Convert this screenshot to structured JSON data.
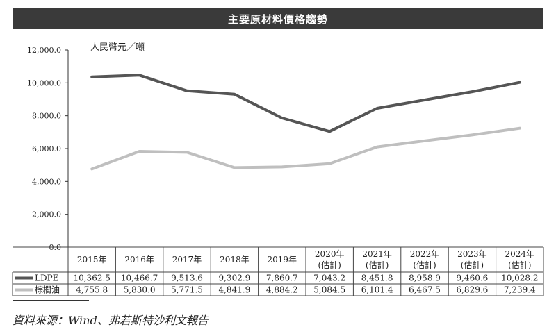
{
  "title": "主要原材料價格趨勢",
  "source": "資料來源：Wind、弗若斯特沙利文報告",
  "chart_data": {
    "type": "line",
    "unit_label": "人民幣元／噸",
    "categories": [
      [
        "2015年",
        ""
      ],
      [
        "2016年",
        ""
      ],
      [
        "2017年",
        ""
      ],
      [
        "2018年",
        ""
      ],
      [
        "2019年",
        ""
      ],
      [
        "2020年",
        "(估計)"
      ],
      [
        "2021年",
        "(估計)"
      ],
      [
        "2022年",
        "(估計)"
      ],
      [
        "2023年",
        "(估計)"
      ],
      [
        "2024年",
        "(估計)"
      ]
    ],
    "y_ticks": [
      "0.0",
      "2,000.0",
      "4,000.0",
      "6,000.0",
      "8,000.0",
      "10,000.0",
      "12,000.0"
    ],
    "ylim": [
      0,
      12000
    ],
    "grid": false,
    "series": [
      {
        "name": "LDPE",
        "color": "#555555",
        "values": [
          10362.5,
          10466.7,
          9513.6,
          9302.9,
          7860.7,
          7043.2,
          8451.8,
          8958.9,
          9460.6,
          10028.2
        ],
        "labels": [
          "10,362.5",
          "10,466.7",
          "9,513.6",
          "9,302.9",
          "7,860.7",
          "7,043.2",
          "8,451.8",
          "8,958.9",
          "9,460.6",
          "10,028.2"
        ]
      },
      {
        "name": "棕櫚油",
        "color": "#bfbfbf",
        "values": [
          4755.8,
          5830.0,
          5771.5,
          4841.9,
          4884.2,
          5084.5,
          6101.4,
          6467.5,
          6829.6,
          7239.4
        ],
        "labels": [
          "4,755.8",
          "5,830.0",
          "5,771.5",
          "4,841.9",
          "4,884.2",
          "5,084.5",
          "6,101.4",
          "6,467.5",
          "6,829.6",
          "7,239.4"
        ]
      }
    ]
  }
}
